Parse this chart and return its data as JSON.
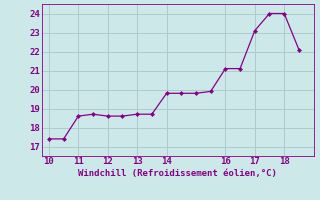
{
  "x": [
    10,
    10.5,
    11,
    11.5,
    12,
    12.5,
    13,
    13.5,
    14,
    14.5,
    15,
    15.5,
    16,
    16.5,
    17,
    17.5,
    18,
    18.5
  ],
  "y": [
    17.4,
    17.4,
    18.6,
    18.7,
    18.6,
    18.6,
    18.7,
    18.7,
    19.8,
    19.8,
    19.8,
    19.9,
    21.1,
    21.1,
    23.1,
    24.0,
    24.0,
    22.1
  ],
  "line_color": "#880088",
  "marker": "D",
  "marker_size": 2,
  "bg_color": "#cce8e8",
  "grid_color": "#aacccc",
  "xlabel": "Windchill (Refroidissement éolien,°C)",
  "xlabel_color": "#880088",
  "tick_color": "#880088",
  "xlim": [
    9.75,
    19.0
  ],
  "ylim": [
    16.5,
    24.5
  ],
  "xticks": [
    10,
    11,
    12,
    13,
    14,
    16,
    17,
    18
  ],
  "yticks": [
    17,
    18,
    19,
    20,
    21,
    22,
    23,
    24
  ]
}
